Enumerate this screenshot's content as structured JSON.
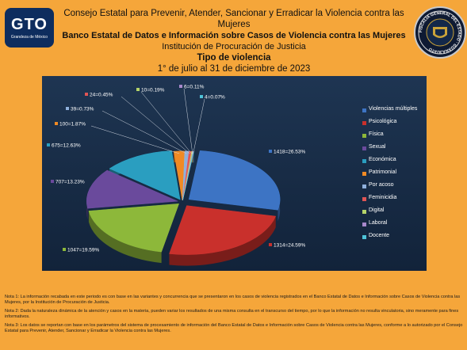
{
  "header": {
    "line1": "Consejo Estatal para Prevenir, Atender, Sancionar y Erradicar la Violencia contra las Mujeres",
    "line2": "Banco Estatal de Datos e Información sobre Casos de Violencia contra las Mujeres",
    "line3": "Institución de Procuración de Justicia",
    "line4": "Tipo de violencia",
    "line5": "1° de julio al 31 de diciembre de 2023"
  },
  "logo": {
    "text": "GTO",
    "subtext": "Grandeza de México"
  },
  "seal": {
    "text": "FISCALÍA GENERAL DEL ESTADO · GUANAJUATO"
  },
  "chart_data": {
    "type": "pie",
    "title": "",
    "series": [
      {
        "name": "Violencias múltiples",
        "value": 1418,
        "label": "1418=26.53%",
        "color": "#3d74c4"
      },
      {
        "name": "Psicológica",
        "value": 1314,
        "label": "1314=24.59%",
        "color": "#c9302c"
      },
      {
        "name": "Física",
        "value": 1047,
        "label": "1047=19.59%",
        "color": "#8db83a"
      },
      {
        "name": "Sexual",
        "value": 707,
        "label": "707=13.23%",
        "color": "#6a4a9c"
      },
      {
        "name": "Económica",
        "value": 675,
        "label": "675=12.63%",
        "color": "#2a9ec0"
      },
      {
        "name": "Patrimonial",
        "value": 100,
        "label": "100=1.87%",
        "color": "#f08a24"
      },
      {
        "name": "Por acoso",
        "value": 39,
        "label": "39=0.73%",
        "color": "#8fb0dc"
      },
      {
        "name": "Feminicidia",
        "value": 24,
        "label": "24=0.45%",
        "color": "#e05555"
      },
      {
        "name": "Digital",
        "value": 10,
        "label": "10=0.19%",
        "color": "#b5d36a"
      },
      {
        "name": "Laboral",
        "value": 6,
        "label": "6=0.11%",
        "color": "#a889cc"
      },
      {
        "name": "Docente",
        "value": 4,
        "label": "4=0.07%",
        "color": "#4ec3d8"
      }
    ],
    "legend_position": "right"
  },
  "notes": [
    "Nota 1: La información recabada en este periodo es con base en las variantes y concurrencia que se presentaron en los casos de violencia registrados en el Banco Estatal de Datos e Información sobre Casos de Violencia contra las Mujeres, por la Institución de Procuración de Justicia.",
    "Nota 2: Dada la naturaleza dinámica de la atención y casos en la materia, pueden variar los resultados de una misma consulta en el transcurso del tiempo, por lo que la información no resulta vinculatoria, sino meramente para fines informativos.",
    "Nota 3: Los datos se reportan con base en los parámetros del sistema de procesamiento de información del Banco Estatal de Datos e Información sobre Casos de Violencia contra las Mujeres, conforme a lo autorizado por el Consejo Estatal para Prevenir, Atender, Sancionar y Erradicar la Violencia contra las Mujeres."
  ]
}
